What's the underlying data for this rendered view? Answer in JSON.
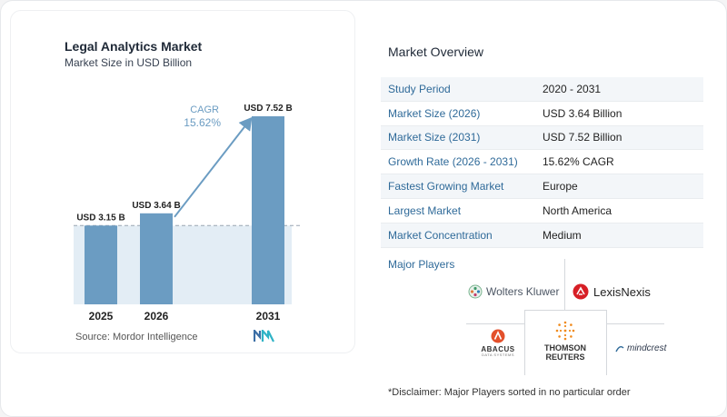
{
  "chart_data": {
    "type": "bar",
    "title": "Legal Analytics Market",
    "subtitle": "Market Size in USD Billion",
    "categories": [
      "2025",
      "2026",
      "2031"
    ],
    "values": [
      3.15,
      3.64,
      7.52
    ],
    "data_labels": [
      "USD 3.15 B",
      "USD 3.64 B",
      "USD 7.52 B"
    ],
    "cagr_label": "CAGR",
    "cagr_value": "15.62%",
    "ylim": [
      0,
      7.52
    ],
    "bar_color": "#6b9cc2",
    "reference_fill": "#e3edf5"
  },
  "source": "Source:  Mordor Intelligence",
  "overview": {
    "title": "Market Overview",
    "rows": [
      {
        "label": "Study Period",
        "value": "2020 - 2031"
      },
      {
        "label": "Market Size (2026)",
        "value": "USD 3.64 Billion"
      },
      {
        "label": "Market Size (2031)",
        "value": "USD 7.52 Billion"
      },
      {
        "label": "Growth Rate (2026 - 2031)",
        "value": "15.62% CAGR"
      },
      {
        "label": "Fastest Growing Market",
        "value": "Europe"
      },
      {
        "label": "Largest Market",
        "value": "North America"
      },
      {
        "label": "Market Concentration",
        "value": "Medium"
      }
    ]
  },
  "players": {
    "title": "Major Players",
    "wolters_kluwer": "Wolters Kluwer",
    "lexisnexis": "LexisNexis",
    "abacus": "ABACUS",
    "abacus_sub": "DATA SYSTEMS",
    "thomson_line1": "THOMSON",
    "thomson_line2": "REUTERS",
    "mindcrest": "mindcrest"
  },
  "disclaimer": "*Disclaimer: Major Players sorted in no particular order"
}
